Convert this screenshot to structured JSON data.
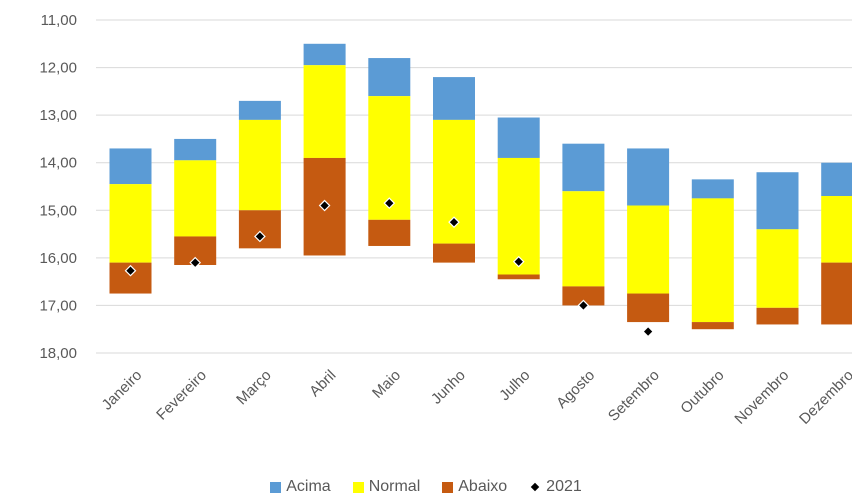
{
  "chart_data": {
    "type": "bar",
    "stacked": true,
    "y_axis_reversed": true,
    "ylim": [
      11,
      18
    ],
    "ytick_step": 1,
    "ytick_labels": [
      "11,00",
      "12,00",
      "13,00",
      "14,00",
      "15,00",
      "16,00",
      "17,00",
      "18,00"
    ],
    "grid": true,
    "legend_position": "bottom",
    "categories": [
      "Janeiro",
      "Fevereiro",
      "Março",
      "Abril",
      "Maio",
      "Junho",
      "Julho",
      "Agosto",
      "Setembro",
      "Outubro",
      "Novembro",
      "Dezembro"
    ],
    "series": [
      {
        "name": "Acima",
        "color": "#5B9BD5",
        "ranges": [
          [
            13.7,
            14.45
          ],
          [
            13.5,
            13.95
          ],
          [
            12.7,
            13.1
          ],
          [
            11.5,
            11.95
          ],
          [
            11.8,
            12.6
          ],
          [
            12.2,
            13.1
          ],
          [
            13.05,
            13.9
          ],
          [
            13.6,
            14.6
          ],
          [
            13.7,
            14.9
          ],
          [
            14.35,
            14.75
          ],
          [
            14.2,
            15.4
          ],
          [
            14.0,
            14.7
          ]
        ]
      },
      {
        "name": "Normal",
        "color": "#FFFF00",
        "ranges": [
          [
            14.45,
            16.1
          ],
          [
            13.95,
            15.55
          ],
          [
            13.1,
            15.0
          ],
          [
            11.95,
            13.9
          ],
          [
            12.6,
            15.2
          ],
          [
            13.1,
            15.7
          ],
          [
            13.9,
            16.35
          ],
          [
            14.6,
            16.6
          ],
          [
            14.9,
            16.75
          ],
          [
            14.75,
            17.35
          ],
          [
            15.4,
            17.05
          ],
          [
            14.7,
            16.1
          ]
        ]
      },
      {
        "name": "Abaixo",
        "color": "#C55A11",
        "ranges": [
          [
            16.1,
            16.75
          ],
          [
            15.55,
            16.15
          ],
          [
            15.0,
            15.8
          ],
          [
            13.9,
            15.95
          ],
          [
            15.2,
            15.75
          ],
          [
            15.7,
            16.1
          ],
          [
            16.35,
            16.45
          ],
          [
            16.6,
            17.0
          ],
          [
            16.75,
            17.35
          ],
          [
            17.35,
            17.5
          ],
          [
            17.05,
            17.4
          ],
          [
            16.1,
            17.4
          ]
        ]
      }
    ],
    "markers": {
      "name": "2021",
      "values": [
        16.27,
        16.1,
        15.55,
        14.9,
        14.85,
        15.25,
        16.08,
        17.0,
        17.55,
        null,
        null,
        null
      ]
    }
  }
}
